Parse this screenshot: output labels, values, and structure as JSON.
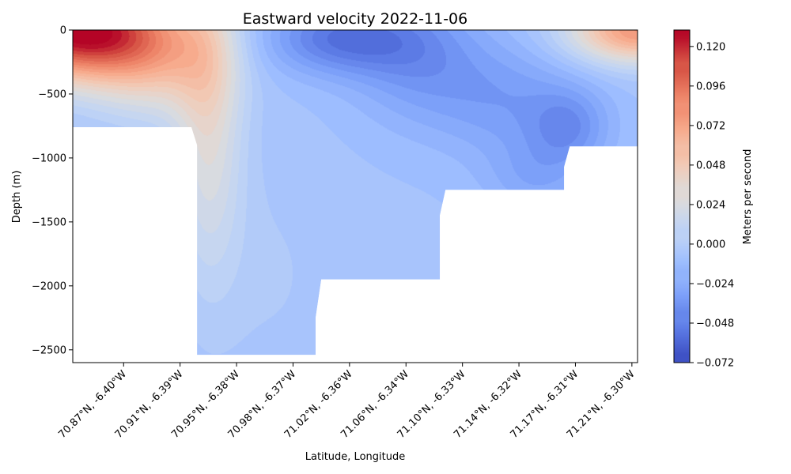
{
  "chart_data": {
    "type": "heatmap",
    "subtype": "filled-contour",
    "title": "Eastward velocity 2022-11-06",
    "xlabel": "Latitude, Longitude",
    "ylabel": "Depth (m)",
    "ylim": [
      -2600,
      0
    ],
    "y_ticks": [
      0,
      -500,
      -1000,
      -1500,
      -2000,
      -2500
    ],
    "y_tick_labels": [
      "0",
      "−500",
      "−1000",
      "−1500",
      "−2000",
      "−2500"
    ],
    "x_range": [
      0,
      10
    ],
    "x_tick_positions": [
      0.9,
      1.9,
      2.9,
      3.9,
      4.9,
      5.9,
      6.9,
      7.9,
      8.9,
      9.9
    ],
    "x_tick_labels": [
      "70.87°N, -6.40°W",
      "70.91°N, -6.39°W",
      "70.95°N, -6.38°W",
      "70.98°N, -6.37°W",
      "71.02°N, -6.36°W",
      "71.06°N, -6.34°W",
      "71.10°N, -6.33°W",
      "71.14°N, -6.32°W",
      "71.17°N, -6.31°W",
      "71.21°N, -6.30°W"
    ],
    "colorbar": {
      "label": "Meters per second",
      "colormap": "coolwarm",
      "vmin": -0.072,
      "vmax": 0.13,
      "ticks": [
        -0.072,
        -0.048,
        -0.024,
        0.0,
        0.024,
        0.048,
        0.072,
        0.096,
        0.12
      ],
      "tick_labels": [
        "−0.072",
        "−0.048",
        "−0.024",
        "0.000",
        "0.024",
        "0.048",
        "0.072",
        "0.096",
        "0.120"
      ],
      "colors": [
        "#3b4cc0",
        "#5977e3",
        "#7b9ff9",
        "#9ebeff",
        "#c0d4f5",
        "#dddcdc",
        "#f2cbb7",
        "#f7ac8e",
        "#ee8468",
        "#d65244",
        "#b40426"
      ]
    },
    "bottom_depth_profile": [
      {
        "x": 0.0,
        "depth": -760
      },
      {
        "x": 2.1,
        "depth": -760
      },
      {
        "x": 2.2,
        "depth": -900
      },
      {
        "x": 2.2,
        "depth": -2540
      },
      {
        "x": 4.3,
        "depth": -2540
      },
      {
        "x": 4.3,
        "depth": -2250
      },
      {
        "x": 4.4,
        "depth": -1950
      },
      {
        "x": 6.5,
        "depth": -1950
      },
      {
        "x": 6.5,
        "depth": -1450
      },
      {
        "x": 6.6,
        "depth": -1250
      },
      {
        "x": 8.7,
        "depth": -1250
      },
      {
        "x": 8.7,
        "depth": -1070
      },
      {
        "x": 8.8,
        "depth": -910
      },
      {
        "x": 10.0,
        "depth": -910
      }
    ],
    "velocity_features": [
      {
        "x": 0.05,
        "depth": 0,
        "value": 0.13,
        "spread_x": 1.6,
        "spread_depth": 380
      },
      {
        "x": 10.0,
        "depth": 0,
        "value": 0.08,
        "spread_x": 1.2,
        "spread_depth": 250
      },
      {
        "x": 1.5,
        "depth": -250,
        "value": 0.035,
        "spread_x": 1.2,
        "spread_depth": 450
      },
      {
        "x": 2.4,
        "depth": -700,
        "value": 0.03,
        "spread_x": 0.6,
        "spread_depth": 1200
      },
      {
        "x": 4.7,
        "depth": -60,
        "value": -0.05,
        "spread_x": 1.3,
        "spread_depth": 280
      },
      {
        "x": 6.1,
        "depth": -200,
        "value": -0.035,
        "spread_x": 1.2,
        "spread_depth": 500
      },
      {
        "x": 7.7,
        "depth": -550,
        "value": -0.03,
        "spread_x": 1.3,
        "spread_depth": 450
      },
      {
        "x": 8.8,
        "depth": -750,
        "value": -0.034,
        "spread_x": 0.7,
        "spread_depth": 300
      },
      {
        "x": 8.2,
        "depth": -1150,
        "value": -0.025,
        "spread_x": 0.9,
        "spread_depth": 300
      },
      {
        "x": 3.5,
        "depth": -1900,
        "value": -0.002,
        "spread_x": 1.2,
        "spread_depth": 900
      }
    ],
    "background_value": -0.008
  }
}
